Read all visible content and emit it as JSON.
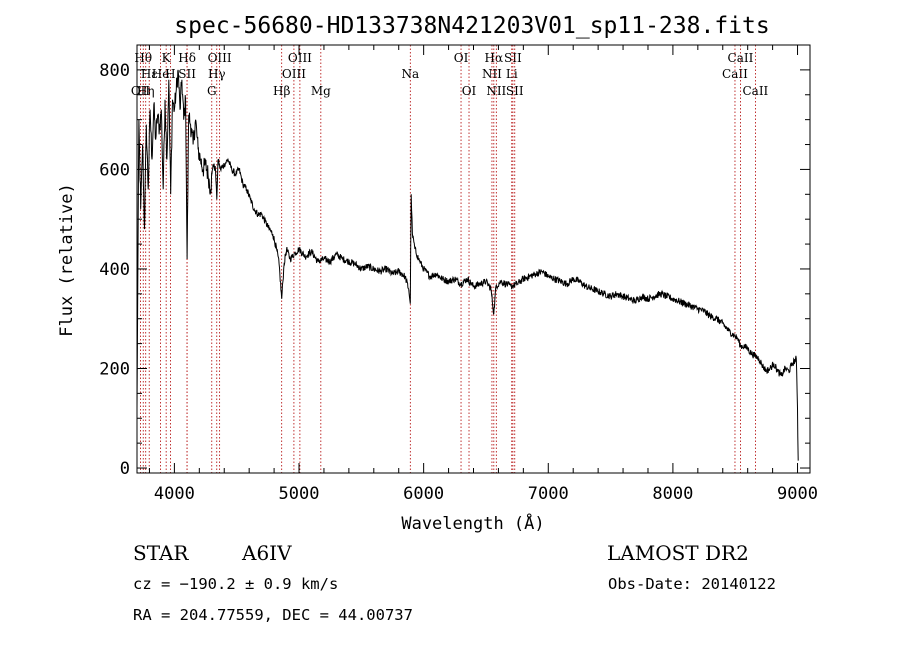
{
  "chart_data": {
    "type": "line",
    "title": "spec-56680-HD133738N421203V01_sp11-238.fits",
    "xlabel": "Wavelength (Å)",
    "ylabel": "Flux (relative)",
    "xlim": [
      3700,
      9100
    ],
    "ylim": [
      -10,
      850
    ],
    "xticks": [
      4000,
      5000,
      6000,
      7000,
      8000,
      9000
    ],
    "yticks": [
      0,
      200,
      400,
      600,
      800
    ],
    "series": [
      {
        "x": [
          3700,
          3715,
          3730,
          3745,
          3760,
          3775,
          3790,
          3805,
          3820,
          3835,
          3850,
          3865,
          3880,
          3895,
          3910,
          3925,
          3940,
          3955,
          3970,
          3985,
          4000,
          4015,
          4030,
          4045,
          4060,
          4075,
          4090,
          4102,
          4115,
          4130,
          4150,
          4170,
          4190,
          4210,
          4230,
          4250,
          4270,
          4290,
          4310,
          4330,
          4340,
          4350,
          4370,
          4400,
          4430,
          4460,
          4490,
          4520,
          4550,
          4580,
          4610,
          4640,
          4670,
          4700,
          4730,
          4760,
          4790,
          4820,
          4840,
          4861,
          4880,
          4900,
          4930,
          4960,
          5000,
          5050,
          5100,
          5150,
          5200,
          5250,
          5300,
          5350,
          5400,
          5450,
          5500,
          5550,
          5600,
          5650,
          5700,
          5750,
          5800,
          5850,
          5880,
          5893,
          5900,
          5910,
          5930,
          5960,
          6000,
          6050,
          6100,
          6150,
          6200,
          6250,
          6300,
          6350,
          6400,
          6450,
          6500,
          6540,
          6563,
          6580,
          6620,
          6660,
          6700,
          6750,
          6800,
          6850,
          6900,
          6950,
          7000,
          7050,
          7100,
          7150,
          7200,
          7250,
          7300,
          7350,
          7400,
          7450,
          7500,
          7550,
          7600,
          7650,
          7700,
          7750,
          7800,
          7850,
          7900,
          7950,
          8000,
          8050,
          8100,
          8150,
          8200,
          8250,
          8300,
          8350,
          8400,
          8450,
          8498,
          8520,
          8542,
          8570,
          8600,
          8630,
          8662,
          8690,
          8720,
          8750,
          8780,
          8810,
          8840,
          8870,
          8900,
          8930,
          8960,
          8990,
          9000,
          9005
        ],
        "y": [
          120,
          700,
          520,
          650,
          480,
          690,
          560,
          720,
          620,
          730,
          660,
          710,
          680,
          720,
          560,
          740,
          620,
          780,
          550,
          740,
          720,
          760,
          800,
          720,
          780,
          700,
          740,
          420,
          710,
          690,
          650,
          700,
          640,
          620,
          600,
          610,
          590,
          560,
          610,
          600,
          540,
          620,
          600,
          610,
          620,
          600,
          590,
          600,
          570,
          560,
          540,
          520,
          510,
          510,
          495,
          480,
          470,
          440,
          410,
          340,
          410,
          440,
          420,
          430,
          440,
          425,
          435,
          415,
          420,
          415,
          430,
          420,
          415,
          410,
          400,
          405,
          400,
          395,
          400,
          390,
          395,
          385,
          360,
          330,
          550,
          470,
          440,
          420,
          400,
          385,
          390,
          380,
          375,
          380,
          370,
          380,
          365,
          370,
          375,
          360,
          310,
          365,
          375,
          370,
          365,
          370,
          380,
          385,
          390,
          395,
          385,
          380,
          375,
          370,
          380,
          375,
          365,
          360,
          355,
          350,
          345,
          350,
          345,
          340,
          335,
          345,
          340,
          345,
          350,
          345,
          340,
          335,
          330,
          325,
          320,
          315,
          305,
          300,
          290,
          275,
          265,
          260,
          245,
          245,
          240,
          230,
          225,
          220,
          205,
          195,
          200,
          210,
          195,
          185,
          200,
          195,
          210,
          220,
          120,
          15
        ]
      }
    ],
    "lines": [
      {
        "x": 3728,
        "label": "OII",
        "row": 3
      },
      {
        "x": 3750,
        "label": "Hθ",
        "row": 1
      },
      {
        "x": 3770,
        "label": "Hη",
        "row": 3
      },
      {
        "x": 3798,
        "label": "Hε",
        "row": 2
      },
      {
        "x": 3889,
        "label": "He",
        "row": 2
      },
      {
        "x": 3934,
        "label": "K",
        "row": 1
      },
      {
        "x": 3968,
        "label": "H",
        "row": 2
      },
      {
        "x": 4102,
        "label": "Hδ",
        "row": 1
      },
      {
        "x": 4102,
        "label": "SII",
        "row": 2
      },
      {
        "x": 4300,
        "label": "G",
        "row": 3
      },
      {
        "x": 4340,
        "label": "Hγ",
        "row": 2
      },
      {
        "x": 4363,
        "label": "OIII",
        "row": 1
      },
      {
        "x": 4861,
        "label": "Hβ",
        "row": 3
      },
      {
        "x": 4959,
        "label": "OIII",
        "row": 2
      },
      {
        "x": 5007,
        "label": "OIII",
        "row": 1
      },
      {
        "x": 5175,
        "label": "Mg",
        "row": 3
      },
      {
        "x": 5893,
        "label": "Na",
        "row": 2
      },
      {
        "x": 6300,
        "label": "OI",
        "row": 1
      },
      {
        "x": 6364,
        "label": "OI",
        "row": 3
      },
      {
        "x": 6548,
        "label": "NII",
        "row": 2
      },
      {
        "x": 6563,
        "label": "Hα",
        "row": 1
      },
      {
        "x": 6583,
        "label": "NII",
        "row": 3
      },
      {
        "x": 6707,
        "label": "Li",
        "row": 2
      },
      {
        "x": 6716,
        "label": "SII",
        "row": 1
      },
      {
        "x": 6731,
        "label": "SII",
        "row": 3
      },
      {
        "x": 8498,
        "label": "CaII",
        "row": 2
      },
      {
        "x": 8542,
        "label": "CaII",
        "row": 1
      },
      {
        "x": 8662,
        "label": "CaII",
        "row": 3
      }
    ]
  },
  "info": {
    "class": "STAR",
    "subclass": "A6IV",
    "survey": "LAMOST DR2",
    "cz": "cz = −190.2 ± 0.9 km/s",
    "obs_date": "Obs-Date: 20140122",
    "radec": "RA = 204.77559, DEC =  44.00737"
  }
}
